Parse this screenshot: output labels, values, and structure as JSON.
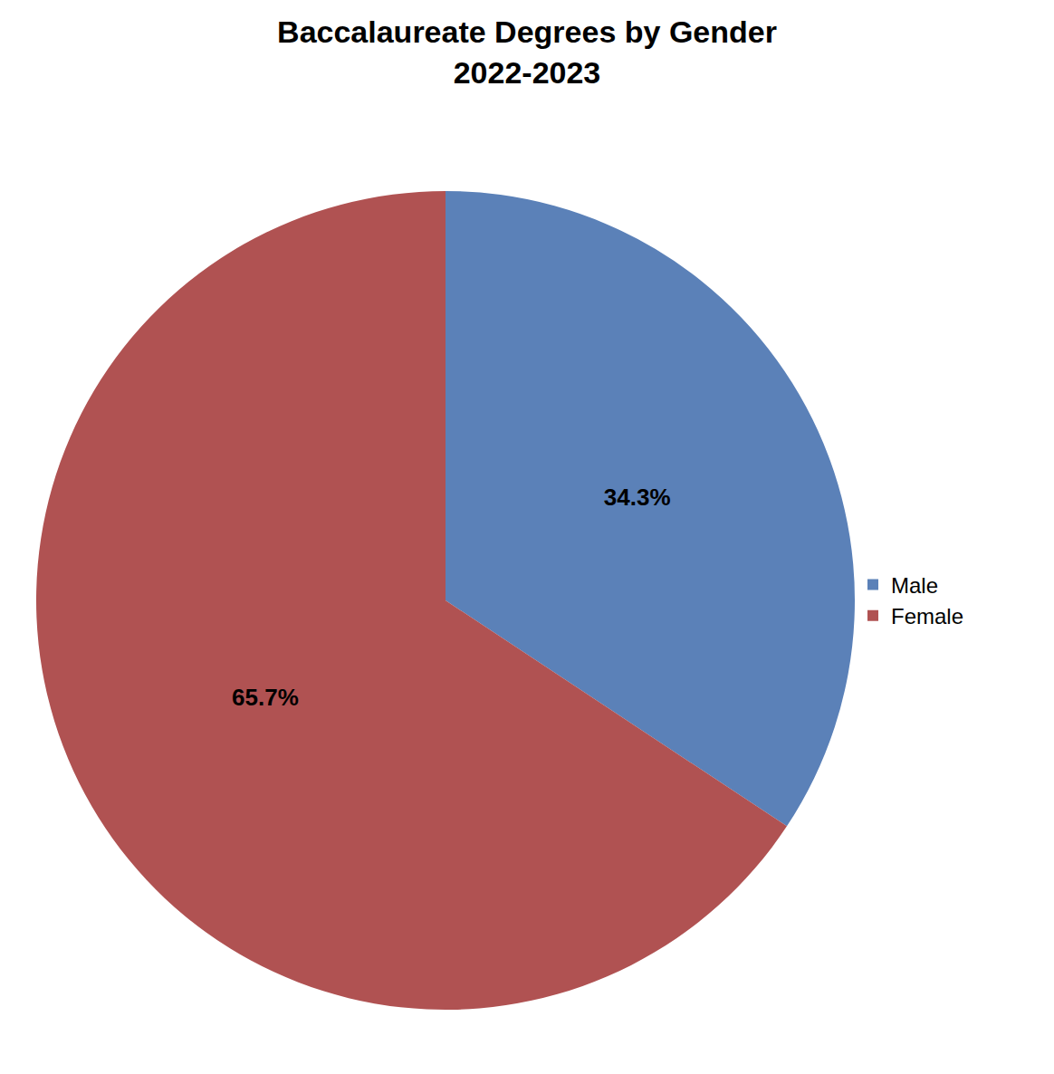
{
  "chart_data": {
    "type": "pie",
    "title": "Baccalaureate Degrees by Gender",
    "subtitle": "2022-2023",
    "categories": [
      "Male",
      "Female"
    ],
    "values": [
      34.3,
      65.7
    ],
    "value_labels": [
      "34.3%",
      "65.7%"
    ],
    "colors": [
      "#5b81b8",
      "#b05252"
    ],
    "data_labels": true,
    "legend": "right"
  }
}
